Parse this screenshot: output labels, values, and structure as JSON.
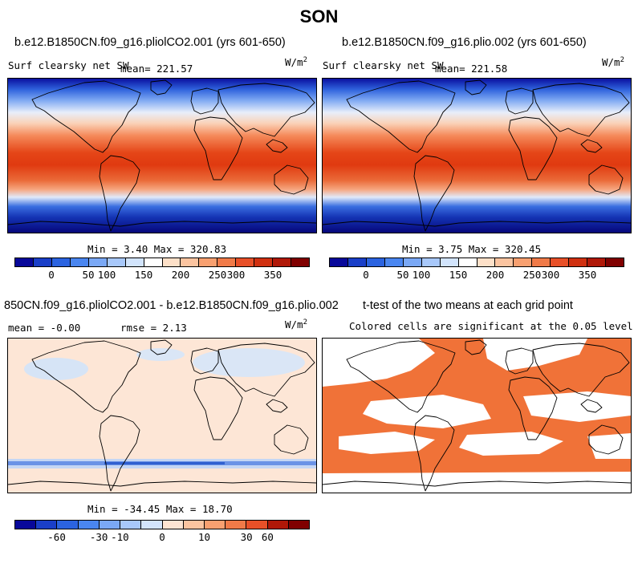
{
  "figure": {
    "title": "SON"
  },
  "panels": {
    "p1": {
      "title": "b.e12.B1850CN.f09_g16.pliolCO2.001 (yrs 601-650)",
      "var_label": "Surf clearsky net SW",
      "mean_label": "mean= 221.57",
      "units": "W/m",
      "units_sup": "2",
      "minmax": "Min =   3.40 Max = 320.83"
    },
    "p2": {
      "title": "b.e12.B1850CN.f09_g16.plio.002 (yrs 601-650)",
      "var_label": "Surf clearsky net SW",
      "mean_label": "mean= 221.58",
      "units": "W/m",
      "units_sup": "2",
      "minmax": "Min =   3.75 Max = 320.45"
    },
    "p3": {
      "title": "850CN.f09_g16.pliolCO2.001 - b.e12.B1850CN.f09_g16.plio.002",
      "mean_label": "mean =  -0.00",
      "rmse_label": "rmse =   2.13",
      "units": "W/m",
      "units_sup": "2",
      "minmax": "Min = -34.45 Max =  18.70"
    },
    "p4": {
      "title": "t-test of the two means at each grid point",
      "subtitle": "Colored cells are significant at the 0.05 level"
    }
  },
  "colorbars": {
    "abs": {
      "ticks": [
        "0",
        "50",
        "100",
        "150",
        "200",
        "250",
        "300",
        "350"
      ],
      "colors": [
        "#08089a",
        "#1a3fc8",
        "#2b63e0",
        "#4a86f0",
        "#7aa8f5",
        "#a8c8fa",
        "#d2e4fc",
        "#ffffff",
        "#fde0c8",
        "#fbc4a0",
        "#f8a070",
        "#f07a48",
        "#e85028",
        "#d03010",
        "#b01808",
        "#800000"
      ]
    },
    "diff": {
      "ticks": [
        "-60",
        "-30",
        "-10",
        "0",
        "10",
        "30",
        "60"
      ],
      "colors": [
        "#08089a",
        "#1a3fc8",
        "#2b63e0",
        "#4a86f0",
        "#7aa8f5",
        "#a8c8fa",
        "#d2e4fc",
        "#fde4d2",
        "#fbc4a0",
        "#f8a070",
        "#f07a48",
        "#e85028",
        "#b01808",
        "#800000"
      ]
    }
  },
  "chart_data": [
    {
      "type": "heatmap",
      "title": "b.e12.B1850CN.f09_g16.pliolCO2.001 (yrs 601-650)",
      "variable": "Surf clearsky net SW",
      "units": "W/m2",
      "mean": 221.57,
      "min": 3.4,
      "max": 320.83,
      "colorbar_range": [
        0,
        350
      ]
    },
    {
      "type": "heatmap",
      "title": "b.e12.B1850CN.f09_g16.plio.002 (yrs 601-650)",
      "variable": "Surf clearsky net SW",
      "units": "W/m2",
      "mean": 221.58,
      "min": 3.75,
      "max": 320.45,
      "colorbar_range": [
        0,
        350
      ]
    },
    {
      "type": "heatmap",
      "title": "850CN.f09_g16.pliolCO2.001 - b.e12.B1850CN.f09_g16.plio.002",
      "units": "W/m2",
      "mean": -0.0,
      "rmse": 2.13,
      "min": -34.45,
      "max": 18.7,
      "colorbar_range": [
        -60,
        60
      ]
    },
    {
      "type": "heatmap",
      "title": "t-test of the two means at each grid point",
      "note": "Colored cells are significant at the 0.05 level"
    }
  ]
}
